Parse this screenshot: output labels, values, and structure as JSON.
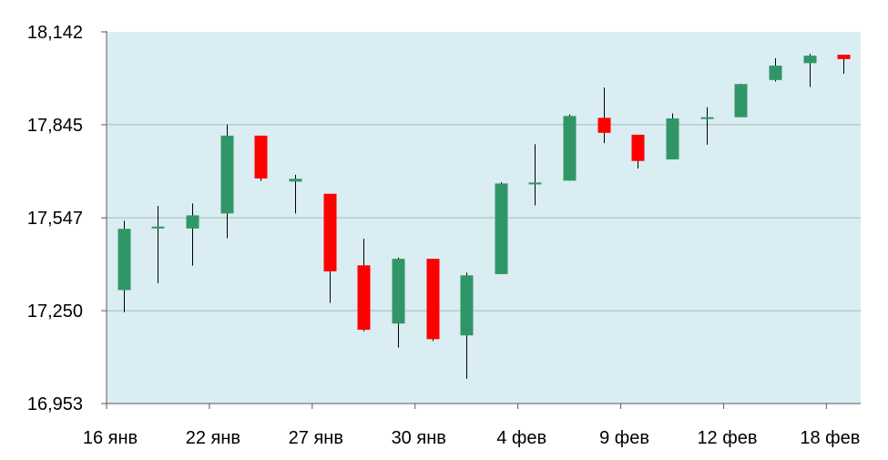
{
  "chart_data": {
    "type": "candlestick",
    "title": "",
    "xlabel": "",
    "ylabel": "",
    "ylim": [
      16953,
      18142
    ],
    "yticks": [
      "18,142",
      "17,845",
      "17,547",
      "17,250",
      "16,953"
    ],
    "ytick_values": [
      18142,
      17845,
      17547,
      17250,
      16953
    ],
    "xticks": [
      {
        "label": "16 янв",
        "index": 0
      },
      {
        "label": "22 янв",
        "index": 3
      },
      {
        "label": "27 янв",
        "index": 6
      },
      {
        "label": "30 янв",
        "index": 9
      },
      {
        "label": "4 фев",
        "index": 12
      },
      {
        "label": "9 фев",
        "index": 15
      },
      {
        "label": "12 фев",
        "index": 18
      },
      {
        "label": "18 фев",
        "index": 21
      }
    ],
    "grid": true,
    "colors": {
      "plot_background": "#daedf2",
      "up": "#319667",
      "down": "#ff0000",
      "grid": "#a6b8bf",
      "axis": "#595959",
      "wick": "#000000"
    },
    "candles": [
      {
        "open": 17316,
        "high": 17538,
        "low": 17245,
        "close": 17512
      },
      {
        "open": 17519,
        "high": 17585,
        "low": 17338,
        "close": 17519
      },
      {
        "open": 17513,
        "high": 17593,
        "low": 17394,
        "close": 17555
      },
      {
        "open": 17561,
        "high": 17846,
        "low": 17482,
        "close": 17810
      },
      {
        "open": 17810,
        "high": 17810,
        "low": 17665,
        "close": 17673
      },
      {
        "open": 17663,
        "high": 17685,
        "low": 17561,
        "close": 17672
      },
      {
        "open": 17624,
        "high": 17624,
        "low": 17275,
        "close": 17376
      },
      {
        "open": 17395,
        "high": 17480,
        "low": 17184,
        "close": 17189
      },
      {
        "open": 17209,
        "high": 17420,
        "low": 17132,
        "close": 17416
      },
      {
        "open": 17416,
        "high": 17416,
        "low": 17153,
        "close": 17159
      },
      {
        "open": 17171,
        "high": 17372,
        "low": 17032,
        "close": 17363
      },
      {
        "open": 17367,
        "high": 17661,
        "low": 17367,
        "close": 17657
      },
      {
        "open": 17660,
        "high": 17783,
        "low": 17587,
        "close": 17660
      },
      {
        "open": 17666,
        "high": 17878,
        "low": 17666,
        "close": 17873
      },
      {
        "open": 17867,
        "high": 17964,
        "low": 17786,
        "close": 17819
      },
      {
        "open": 17813,
        "high": 17813,
        "low": 17705,
        "close": 17729
      },
      {
        "open": 17734,
        "high": 17881,
        "low": 17734,
        "close": 17865
      },
      {
        "open": 17869,
        "high": 17901,
        "low": 17781,
        "close": 17869
      },
      {
        "open": 17869,
        "high": 17976,
        "low": 17869,
        "close": 17975
      },
      {
        "open": 17988,
        "high": 18058,
        "low": 17983,
        "close": 18034
      },
      {
        "open": 18042,
        "high": 18072,
        "low": 17966,
        "close": 18066
      },
      {
        "open": 18069,
        "high": 18069,
        "low": 18008,
        "close": 18055
      }
    ]
  }
}
